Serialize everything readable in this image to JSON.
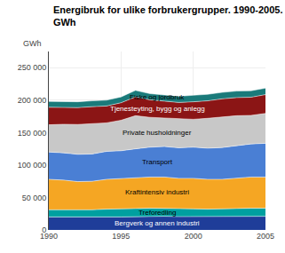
{
  "chart_data": {
    "type": "area",
    "stacked": true,
    "title": "Energibruk for ulike forbrukergrupper. 1990-2005.",
    "subtitle": "GWh",
    "y_label": "GWh",
    "x": [
      1990,
      1991,
      1992,
      1993,
      1994,
      1995,
      1996,
      1997,
      1998,
      1999,
      2000,
      2001,
      2002,
      2003,
      2004,
      2005
    ],
    "series": [
      {
        "name": "Bergverk og annen industri",
        "color": "#1f3d99",
        "values": [
          20000,
          19800,
          19500,
          19500,
          20000,
          20000,
          20500,
          21000,
          21000,
          20500,
          20500,
          20000,
          20000,
          20500,
          21000,
          21000
        ]
      },
      {
        "name": "Treforedling",
        "color": "#00a0a0",
        "values": [
          11000,
          11000,
          11000,
          11500,
          12000,
          12000,
          12500,
          12500,
          12500,
          12000,
          12000,
          12000,
          12000,
          12500,
          12500,
          12500
        ]
      },
      {
        "name": "Kraftintensiv industri",
        "color": "#f5a623",
        "values": [
          47000,
          46000,
          44000,
          44000,
          46000,
          47000,
          48000,
          48000,
          48000,
          47000,
          47000,
          46000,
          46000,
          47000,
          48000,
          48000
        ]
      },
      {
        "name": "Transport",
        "color": "#4a7fd4",
        "values": [
          42000,
          42000,
          42000,
          42000,
          43000,
          43000,
          44000,
          46000,
          47000,
          47000,
          48000,
          48000,
          49000,
          50000,
          51000,
          52000
        ]
      },
      {
        "name": "Private husholdninger",
        "color": "#c8c8c8",
        "values": [
          42000,
          44000,
          46000,
          47000,
          44000,
          47000,
          51000,
          46000,
          44000,
          44000,
          43000,
          46000,
          47000,
          46000,
          44000,
          46000
        ]
      },
      {
        "name": "Tjenesteyting, bygg og anlegg",
        "color": "#8b1515",
        "values": [
          27000,
          26000,
          26000,
          26000,
          26000,
          27000,
          29000,
          27000,
          26000,
          26000,
          27000,
          27000,
          28000,
          28000,
          28000,
          29000
        ]
      },
      {
        "name": "Fiske og jordbruk",
        "color": "#1a7a7a",
        "values": [
          9000,
          9000,
          9000,
          9000,
          9000,
          9000,
          10000,
          9500,
          9500,
          9500,
          10000,
          10000,
          10000,
          10000,
          10000,
          10000
        ]
      }
    ],
    "xlim": [
      1990,
      2005
    ],
    "xticks": [
      1990,
      1995,
      2000,
      2005
    ],
    "ylim": [
      0,
      275000
    ],
    "yticks": [
      {
        "value": 0,
        "label": "0"
      },
      {
        "value": 50000,
        "label": "50 000"
      },
      {
        "value": 100000,
        "label": "100 000"
      },
      {
        "value": 150000,
        "label": "150 000"
      },
      {
        "value": 200000,
        "label": "200 000"
      },
      {
        "value": 250000,
        "label": "250 000"
      }
    ],
    "grid": true
  }
}
